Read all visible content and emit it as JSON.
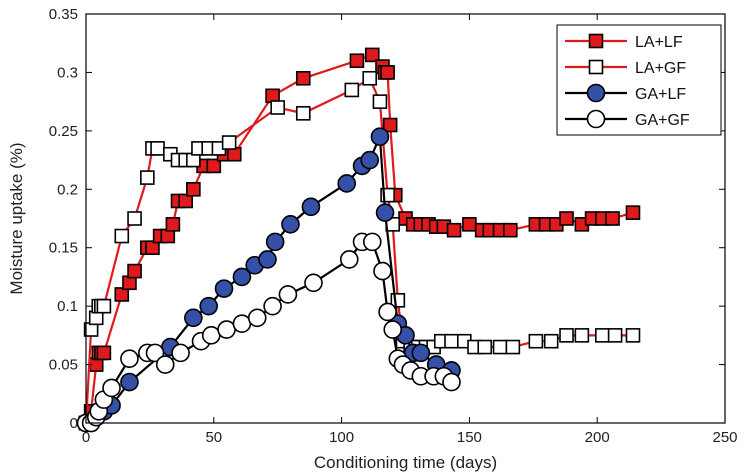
{
  "chart_data": {
    "type": "line",
    "xlabel": "Conditioning time (days)",
    "ylabel": "Moisture uptake (%)",
    "xlim": [
      0,
      250
    ],
    "ylim": [
      0,
      0.35
    ],
    "x_ticks": [
      0,
      50,
      100,
      150,
      200,
      250
    ],
    "y_ticks": [
      0,
      0.05,
      0.1,
      0.15,
      0.2,
      0.25,
      0.3,
      0.35
    ],
    "x_tick_labels": [
      "0",
      "50",
      "100",
      "150",
      "200",
      "250"
    ],
    "y_tick_labels": [
      "0",
      "0.05",
      "0.1",
      "0.15",
      "0.2",
      "0.25",
      "0.3",
      "0.35"
    ],
    "grid": false,
    "legend_position": "top-right",
    "series": [
      {
        "name": "LA+LF",
        "line_color": "#e0191d",
        "marker": "square",
        "marker_fill": "#e0191d",
        "x": [
          0,
          2,
          4,
          5,
          6,
          7,
          14,
          17,
          19,
          24,
          26,
          29,
          32,
          34,
          36,
          39,
          42,
          46,
          50,
          54,
          58,
          73,
          85,
          106,
          112,
          116,
          117,
          118,
          119,
          121,
          125,
          128,
          131,
          134,
          137,
          140,
          144,
          150,
          155,
          158,
          162,
          166,
          176,
          180,
          184,
          188,
          194,
          198,
          202,
          206,
          214
        ],
        "y": [
          0,
          0.01,
          0.05,
          0.06,
          0.06,
          0.06,
          0.11,
          0.12,
          0.13,
          0.15,
          0.15,
          0.16,
          0.16,
          0.17,
          0.19,
          0.19,
          0.2,
          0.22,
          0.22,
          0.23,
          0.23,
          0.28,
          0.295,
          0.31,
          0.315,
          0.305,
          0.3,
          0.3,
          0.255,
          0.195,
          0.175,
          0.17,
          0.17,
          0.17,
          0.168,
          0.168,
          0.165,
          0.17,
          0.165,
          0.165,
          0.165,
          0.165,
          0.17,
          0.17,
          0.17,
          0.175,
          0.17,
          0.175,
          0.175,
          0.175,
          0.18
        ]
      },
      {
        "name": "LA+GF",
        "line_color": "#e0191d",
        "marker": "square",
        "marker_fill": "#ffffff",
        "x": [
          0,
          2,
          4,
          5,
          6,
          7,
          14,
          19,
          24,
          26,
          28,
          33,
          36,
          39,
          42,
          44,
          48,
          52,
          56,
          75,
          85,
          104,
          111,
          115,
          118,
          120,
          122,
          124,
          127,
          130,
          133,
          136,
          139,
          143,
          148,
          152,
          156,
          162,
          167,
          176,
          182,
          188,
          194,
          202,
          207,
          214
        ],
        "y": [
          0,
          0.08,
          0.09,
          0.1,
          0.1,
          0.1,
          0.16,
          0.175,
          0.21,
          0.235,
          0.235,
          0.23,
          0.225,
          0.225,
          0.225,
          0.235,
          0.235,
          0.235,
          0.24,
          0.27,
          0.265,
          0.285,
          0.295,
          0.275,
          0.195,
          0.17,
          0.105,
          0.07,
          0.065,
          0.065,
          0.065,
          0.065,
          0.07,
          0.07,
          0.07,
          0.065,
          0.065,
          0.065,
          0.065,
          0.07,
          0.07,
          0.075,
          0.075,
          0.075,
          0.075,
          0.075
        ]
      },
      {
        "name": "GA+LF",
        "line_color": "#000000",
        "marker": "circle",
        "marker_fill": "#3450a8",
        "x": [
          0,
          2,
          4,
          7,
          10,
          17,
          33,
          42,
          48,
          54,
          61,
          66,
          71,
          74,
          80,
          88,
          102,
          108,
          111,
          115,
          117,
          122,
          125,
          128,
          131,
          137,
          143
        ],
        "y": [
          0,
          0,
          0.005,
          0.01,
          0.015,
          0.035,
          0.065,
          0.09,
          0.1,
          0.115,
          0.125,
          0.135,
          0.14,
          0.155,
          0.17,
          0.185,
          0.205,
          0.22,
          0.225,
          0.245,
          0.18,
          0.085,
          0.075,
          0.06,
          0.06,
          0.05,
          0.045
        ]
      },
      {
        "name": "GA+GF",
        "line_color": "#000000",
        "marker": "circle",
        "marker_fill": "#ffffff",
        "x": [
          0,
          2,
          4,
          5,
          7,
          10,
          17,
          24,
          27,
          31,
          37,
          45,
          49,
          55,
          61,
          67,
          73,
          79,
          89,
          103,
          108,
          112,
          116,
          118,
          120,
          122,
          124,
          127,
          131,
          136,
          140,
          143
        ],
        "y": [
          0,
          0,
          0.005,
          0.01,
          0.02,
          0.03,
          0.055,
          0.06,
          0.06,
          0.05,
          0.06,
          0.07,
          0.075,
          0.08,
          0.085,
          0.09,
          0.1,
          0.11,
          0.12,
          0.14,
          0.155,
          0.155,
          0.13,
          0.095,
          0.08,
          0.055,
          0.05,
          0.045,
          0.04,
          0.04,
          0.04,
          0.035
        ]
      }
    ]
  }
}
